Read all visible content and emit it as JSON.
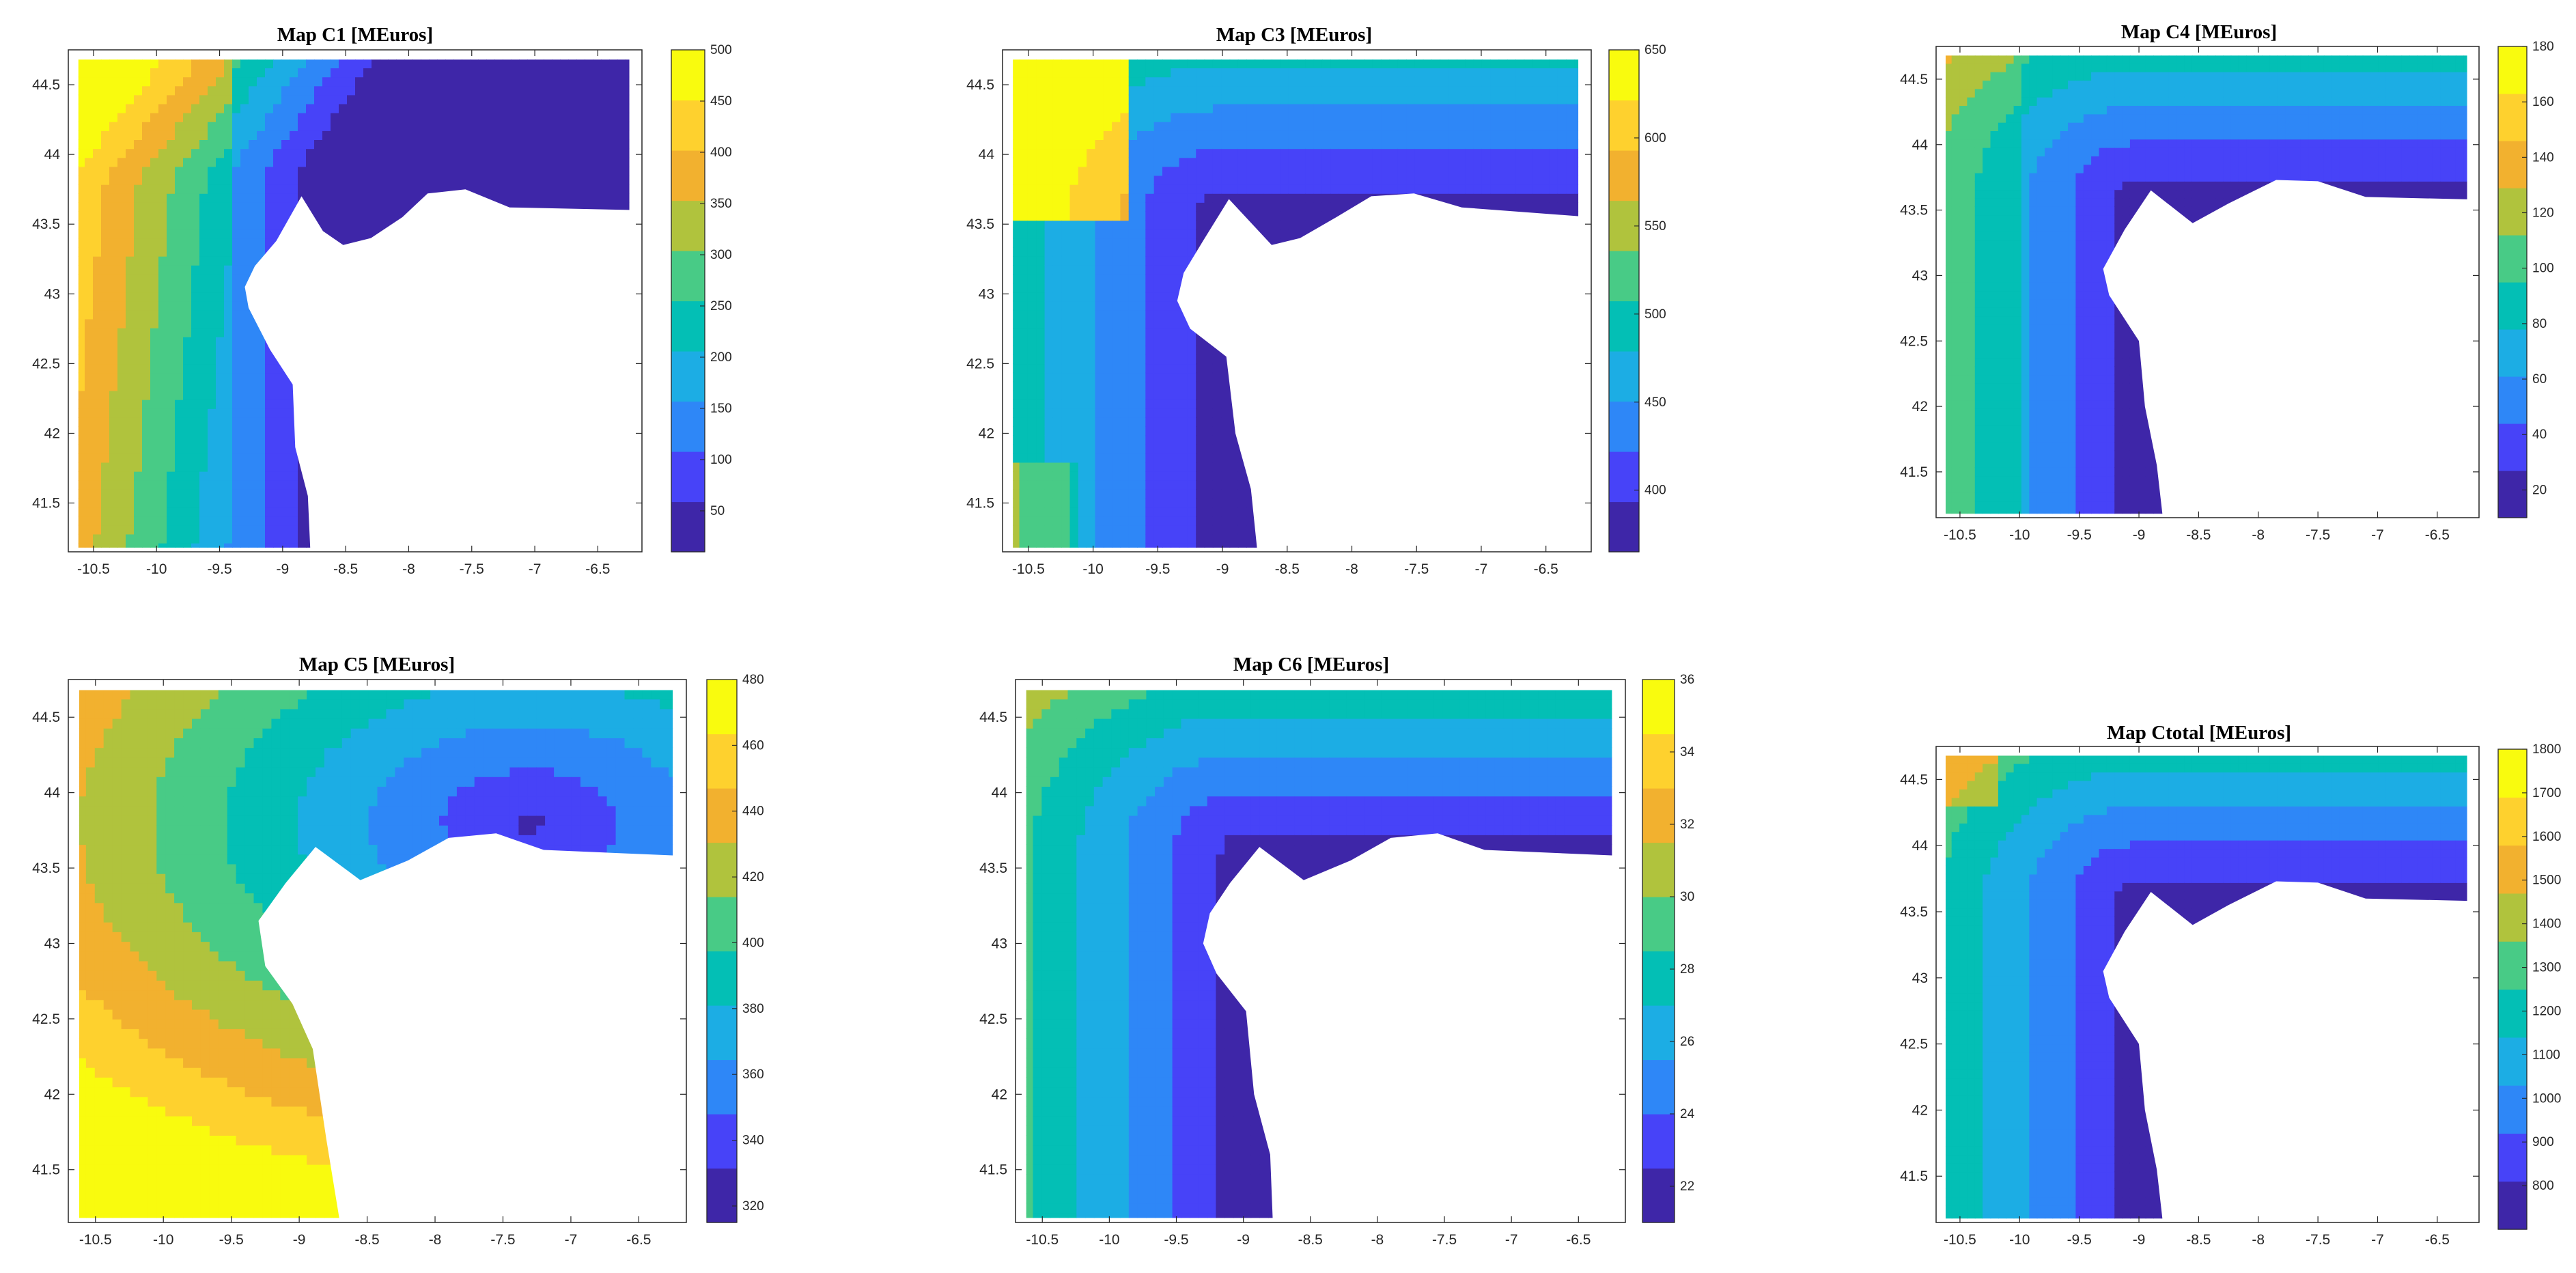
{
  "chart_data": [
    {
      "type": "heatmap",
      "title": "Map C1 [MEuros]",
      "xlim": [
        -10.7,
        -6.15
      ],
      "ylim": [
        41.15,
        44.75
      ],
      "xticks": [
        -10.5,
        -10,
        -9.5,
        -9,
        -8.5,
        -8,
        -7.5,
        -7,
        -6.5
      ],
      "yticks": [
        41.5,
        42,
        42.5,
        43,
        43.5,
        44,
        44.5
      ],
      "clim": [
        10,
        500
      ],
      "cticks": [
        50,
        100,
        150,
        200,
        250,
        300,
        350,
        400,
        450,
        500
      ],
      "coast_x": -8.85,
      "coast_y": 43.7,
      "gradient": "west-to-east decreasing"
    },
    {
      "type": "heatmap",
      "title": "Map C3 [MEuros]",
      "xlim": [
        -10.7,
        -6.15
      ],
      "ylim": [
        41.15,
        44.75
      ],
      "xticks": [
        -10.5,
        -10,
        -9.5,
        -9,
        -8.5,
        -8,
        -7.5,
        -7,
        -6.5
      ],
      "yticks": [
        41.5,
        42,
        42.5,
        43,
        43.5,
        44,
        44.5
      ],
      "clim": [
        365,
        650
      ],
      "cticks": [
        400,
        450,
        500,
        550,
        600,
        650
      ],
      "coast_x": -8.85,
      "coast_y": 43.7,
      "gradient": "north-west maximum"
    },
    {
      "type": "heatmap",
      "title": "Map C4 [MEuros]",
      "xlim": [
        -10.7,
        -6.15
      ],
      "ylim": [
        41.15,
        44.75
      ],
      "xticks": [
        -10.5,
        -10,
        -9.5,
        -9,
        -8.5,
        -8,
        -7.5,
        -7,
        -6.5
      ],
      "yticks": [
        41.5,
        42,
        42.5,
        43,
        43.5,
        44,
        44.5
      ],
      "clim": [
        10,
        180
      ],
      "cticks": [
        20,
        40,
        60,
        80,
        100,
        120,
        140,
        160,
        180
      ],
      "coast_x": -8.85,
      "coast_y": 43.7,
      "gradient": "distance from coast"
    },
    {
      "type": "heatmap",
      "title": "Map C5 [MEuros]",
      "xlim": [
        -10.7,
        -6.15
      ],
      "ylim": [
        41.15,
        44.75
      ],
      "xticks": [
        -10.5,
        -10,
        -9.5,
        -9,
        -8.5,
        -8,
        -7.5,
        -7,
        -6.5
      ],
      "yticks": [
        41.5,
        42,
        42.5,
        43,
        43.5,
        44,
        44.5
      ],
      "clim": [
        315,
        480
      ],
      "cticks": [
        320,
        340,
        360,
        380,
        400,
        420,
        440,
        460,
        480
      ],
      "coast_x": -8.85,
      "coast_y": 43.7,
      "gradient": "radial from north-east"
    },
    {
      "type": "heatmap",
      "title": "Map C6 [MEuros]",
      "xlim": [
        -10.7,
        -6.15
      ],
      "ylim": [
        41.15,
        44.75
      ],
      "xticks": [
        -10.5,
        -10,
        -9.5,
        -9,
        -8.5,
        -8,
        -7.5,
        -7,
        -6.5
      ],
      "yticks": [
        41.5,
        42,
        42.5,
        43,
        43.5,
        44,
        44.5
      ],
      "clim": [
        21,
        36
      ],
      "cticks": [
        22,
        24,
        26,
        28,
        30,
        32,
        34,
        36
      ],
      "coast_x": -8.85,
      "coast_y": 43.7,
      "gradient": "distance from coast"
    },
    {
      "type": "heatmap",
      "title": "Map Ctotal [MEuros]",
      "xlim": [
        -10.7,
        -6.15
      ],
      "ylim": [
        41.15,
        44.75
      ],
      "xticks": [
        -10.5,
        -10,
        -9.5,
        -9,
        -8.5,
        -8,
        -7.5,
        -7,
        -6.5
      ],
      "yticks": [
        41.5,
        42,
        42.5,
        43,
        43.5,
        44,
        44.5
      ],
      "clim": [
        700,
        1800
      ],
      "cticks": [
        800,
        900,
        1000,
        1100,
        1200,
        1300,
        1400,
        1500,
        1600,
        1700,
        1800
      ],
      "coast_x": -8.85,
      "coast_y": 43.7,
      "gradient": "distance from coast"
    }
  ],
  "colormap": [
    "#3e26a8",
    "#4743f8",
    "#2e87f7",
    "#1cade4",
    "#03bfb5",
    "#48cb86",
    "#b0c33d",
    "#f2b12f",
    "#fed12e",
    "#f9fb0e"
  ],
  "colors": {
    "axis": "#262626",
    "land": "#ffffff"
  }
}
